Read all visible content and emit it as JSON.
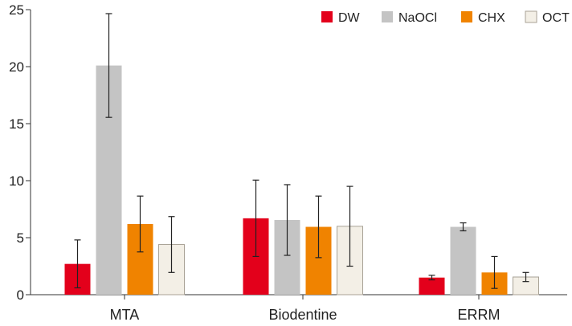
{
  "chart_data": {
    "type": "bar",
    "title": "",
    "xlabel": "",
    "ylabel": "",
    "ylim": [
      0,
      25
    ],
    "yticks": [
      0,
      5,
      10,
      15,
      20,
      25
    ],
    "ytick_labels": [
      "0",
      "5",
      "10",
      "15",
      "20",
      "25"
    ],
    "categories": [
      "MTA",
      "Biodentine",
      "ERRM"
    ],
    "legend_position": "top-right",
    "grid": false,
    "series": [
      {
        "name": "DW",
        "color": "#e3001b",
        "values": [
          2.7,
          6.7,
          1.5
        ],
        "errors": [
          2.1,
          3.35,
          0.2
        ]
      },
      {
        "name": "NaOCl",
        "color": "#c4c4c4",
        "values": [
          20.1,
          6.55,
          5.95
        ],
        "errors": [
          4.55,
          3.1,
          0.35
        ]
      },
      {
        "name": "CHX",
        "color": "#f08300",
        "values": [
          6.2,
          5.95,
          1.95
        ],
        "errors": [
          2.45,
          2.7,
          1.4
        ]
      },
      {
        "name": "OCT",
        "color": "#f3efe6",
        "values": [
          4.4,
          6.0,
          1.55
        ],
        "errors": [
          2.45,
          3.5,
          0.4
        ]
      }
    ]
  }
}
